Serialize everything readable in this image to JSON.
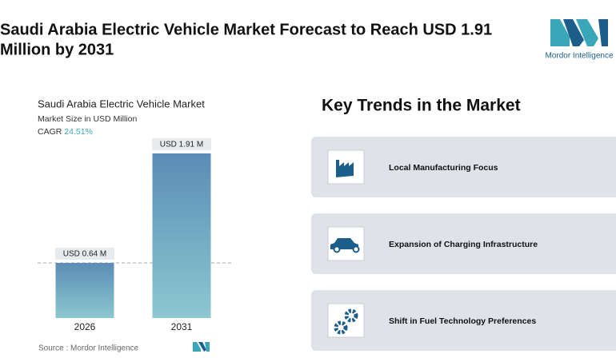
{
  "header": {
    "title_lines": [
      "Saudi Arabia Electric Vehicle Market Forecast to Reach USD 1.91",
      "Million by 2031"
    ],
    "logo": "Mordor Intelligence"
  },
  "chart_data": {
    "type": "bar",
    "title": "Saudi Arabia Electric Vehicle Market",
    "subtitle": "Market Size in USD Million",
    "cagr_label": "CAGR",
    "cagr_value": "24.51%",
    "categories": [
      "2026",
      "2031"
    ],
    "values": [
      0.64,
      1.91
    ],
    "value_labels": [
      "USD 0.64 M",
      "USD 1.91 M"
    ],
    "color": [
      "#5b8cb6",
      "#8cc8d0"
    ],
    "source": "Source :  Mordor Intelligence"
  },
  "trends": {
    "title": "Key Trends in the Market",
    "items": [
      "Local Manufacturing Focus",
      "Expansion of Charging Infrastructure",
      "Shift in Fuel Technology Preferences"
    ]
  }
}
